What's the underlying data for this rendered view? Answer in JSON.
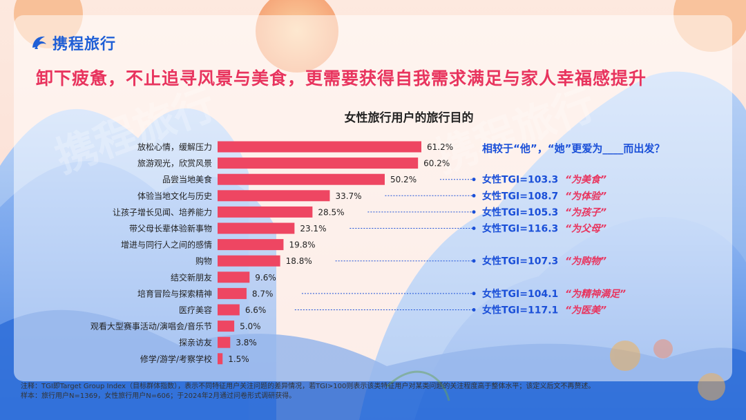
{
  "brand": {
    "name": "携程旅行"
  },
  "headline": "卸下疲惫，不止追寻风景与美食，更需要获得自我需求满足与家人幸福感提升",
  "watermark": "携程旅行",
  "chart_data": {
    "type": "bar",
    "orientation": "horizontal",
    "title": "女性旅行用户的旅行目的",
    "categories": [
      "放松心情，缓解压力",
      "旅游观光，欣赏风景",
      "品尝当地美食",
      "体验当地文化与历史",
      "让孩子增长见闻、培养能力",
      "带父母长辈体验新事物",
      "增进与同行人之间的感情",
      "购物",
      "结交新朋友",
      "培育冒险与探索精神",
      "医疗美容",
      "观看大型赛事活动/演唱会/音乐节",
      "探亲访友",
      "修学/游学/考察学校"
    ],
    "values": [
      61.2,
      60.2,
      50.2,
      33.7,
      28.5,
      23.1,
      19.8,
      18.8,
      9.6,
      8.7,
      6.6,
      5.0,
      3.8,
      1.5
    ],
    "value_labels": [
      "61.2%",
      "60.2%",
      "50.2%",
      "33.7%",
      "28.5%",
      "23.1%",
      "19.8%",
      "18.8%",
      "9.6%",
      "8.7%",
      "6.6%",
      "5.0%",
      "3.8%",
      "1.5%"
    ],
    "bar_color": "#ee4662",
    "xlim": [
      0,
      61.2
    ]
  },
  "callout": {
    "question": "相较于“他”，“她”更爱为____而出发？",
    "items": [
      {
        "row": 2,
        "tgi": "女性TGI=103.3",
        "tag": "“为美食”"
      },
      {
        "row": 3,
        "tgi": "女性TGI=108.7",
        "tag": "“为体验”"
      },
      {
        "row": 4,
        "tgi": "女性TGI=105.3",
        "tag": "“为孩子”"
      },
      {
        "row": 5,
        "tgi": "女性TGI=116.3",
        "tag": "“为父母”"
      },
      {
        "row": 7,
        "tgi": "女性TGI=107.3",
        "tag": "“为购物”"
      },
      {
        "row": 9,
        "tgi": "女性TGI=104.1",
        "tag": "“为精神满足”"
      },
      {
        "row": 10,
        "tgi": "女性TGI=117.1",
        "tag": "“为医美”"
      }
    ],
    "tgi_color": "#1a4fd8",
    "tag_color": "#e8345e"
  },
  "notes": {
    "line1": "注释：TGI即Target Group Index（目标群体指数），表示不同特征用户关注问题的差异情况，若TGI>100则表示该类特征用户对某类问题的关注程度高于整体水平；该定义后文不再赘述。",
    "line2": "样本：旅行用户N=1369，女性旅行用户N=606；于2024年2月通过问卷形式调研获得。"
  }
}
